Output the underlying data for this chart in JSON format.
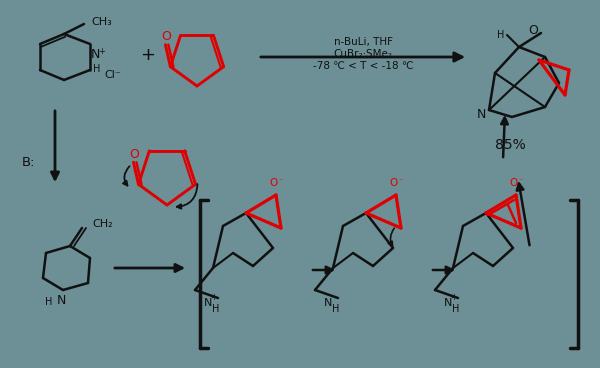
{
  "background_color": "#6d8f96",
  "reagent_line1": "n-BuLi, THF",
  "reagent_line2": "CuBr₂·SMe₂",
  "reagent_line3": "-78 ℃ < T < -18 ℃",
  "yield_text": "85%",
  "base_text": "B:",
  "red_color": "#dd0000",
  "black_color": "#111111",
  "white_color": "#ffffff",
  "bg_color": "#6d8f96"
}
